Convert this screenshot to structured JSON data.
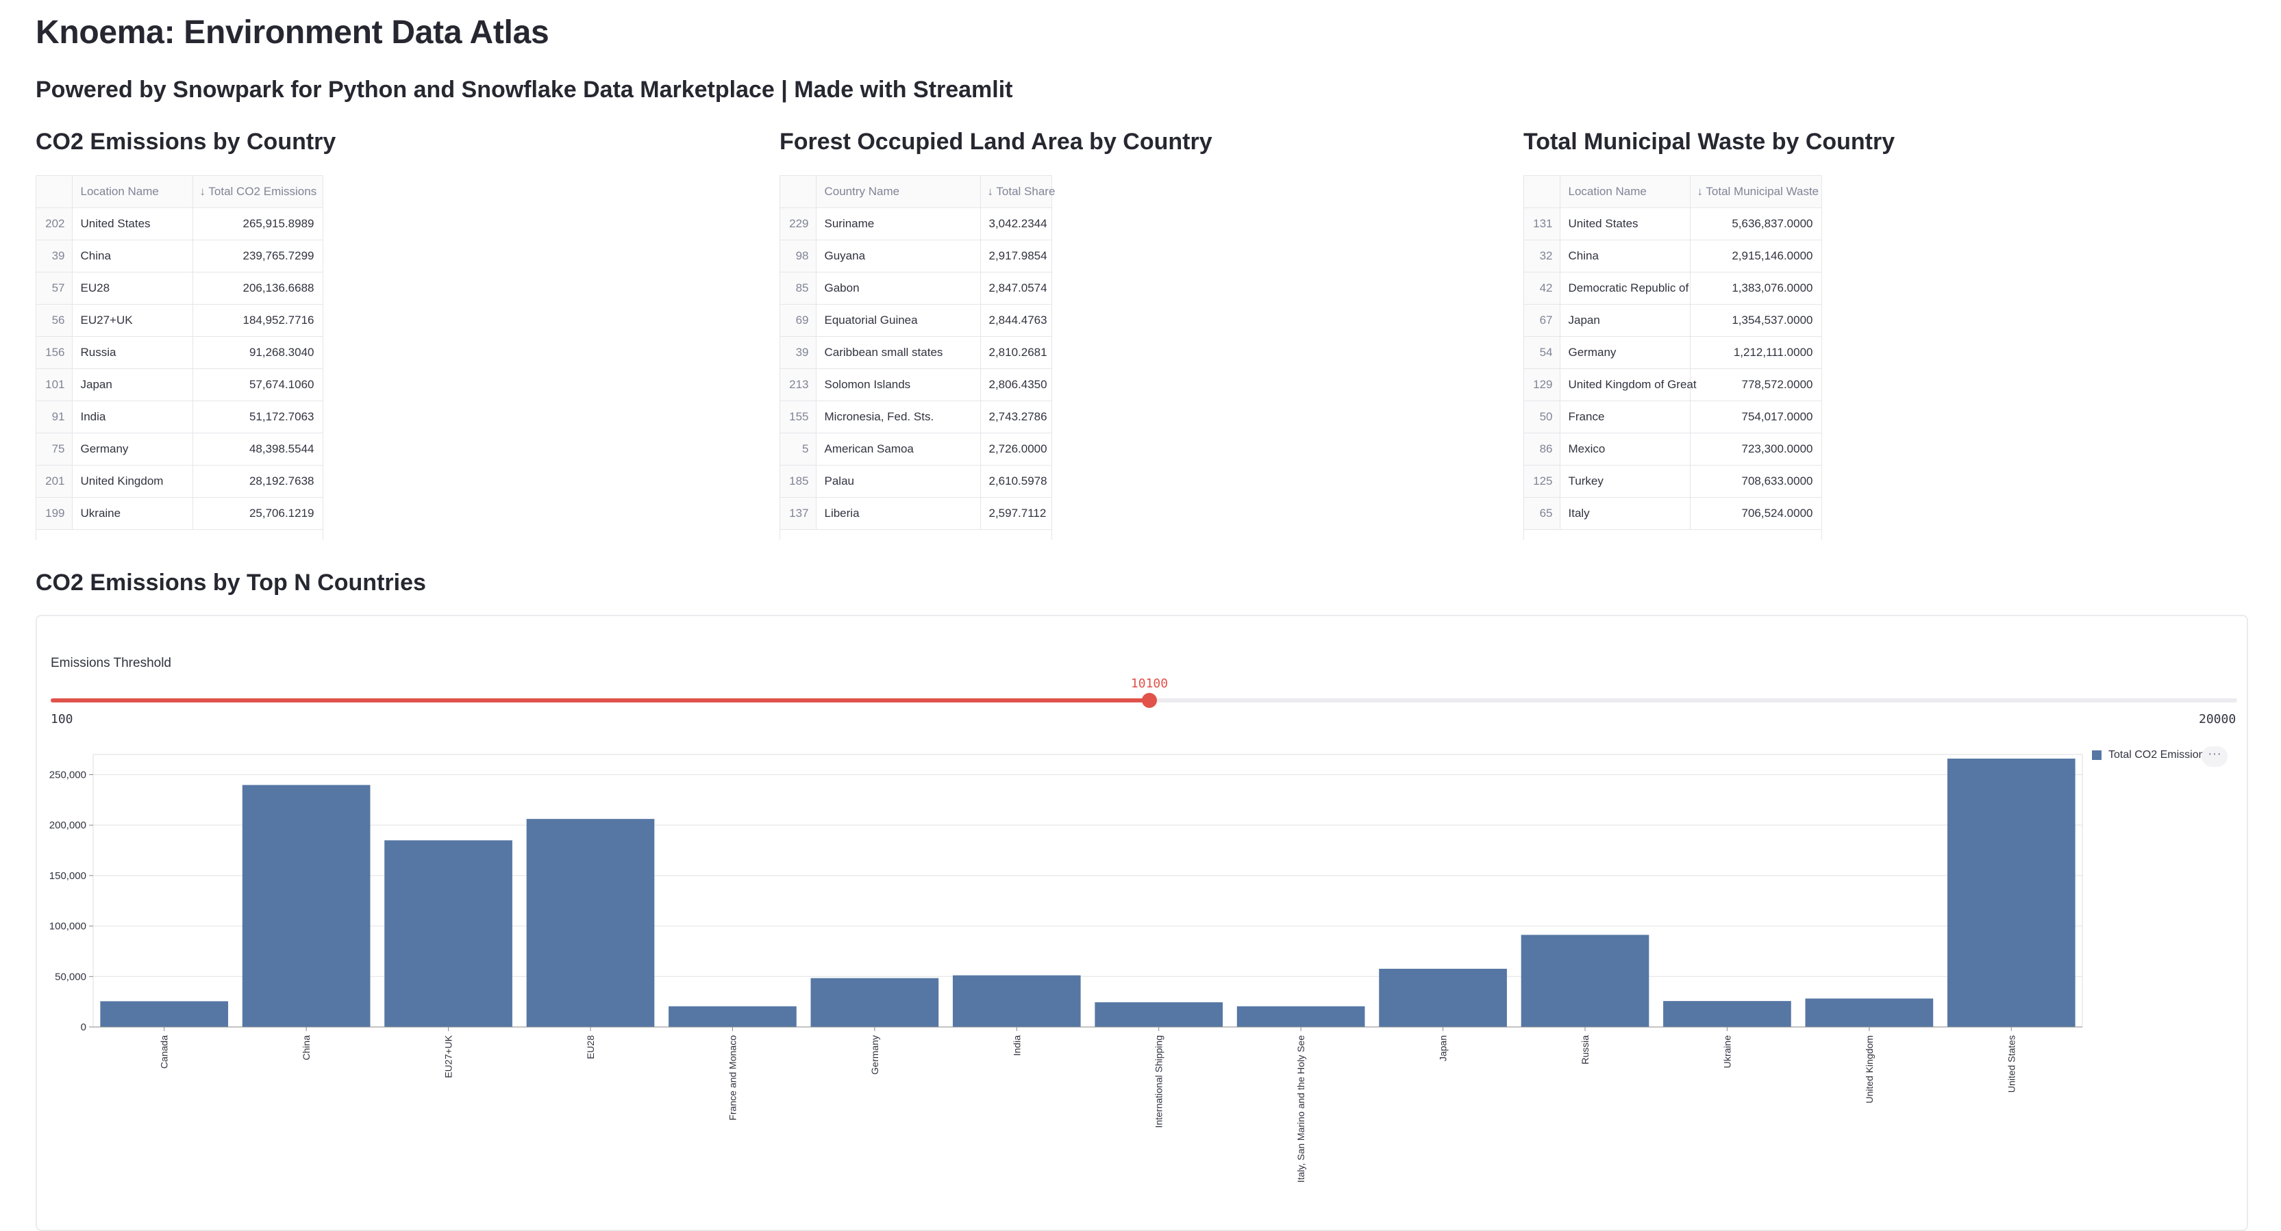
{
  "app": {
    "title": "Knoema: Environment Data Atlas",
    "subtitle": "Powered by Snowpark for Python and Snowflake Data Marketplace | Made with Streamlit"
  },
  "co2_table": {
    "heading": "CO2 Emissions by Country",
    "columns": [
      "Location Name",
      "↓ Total CO2 Emissions"
    ],
    "rows": [
      {
        "idx": "202",
        "name": "United States",
        "value": "265,915.8989"
      },
      {
        "idx": "39",
        "name": "China",
        "value": "239,765.7299"
      },
      {
        "idx": "57",
        "name": "EU28",
        "value": "206,136.6688"
      },
      {
        "idx": "56",
        "name": "EU27+UK",
        "value": "184,952.7716"
      },
      {
        "idx": "156",
        "name": "Russia",
        "value": "91,268.3040"
      },
      {
        "idx": "101",
        "name": "Japan",
        "value": "57,674.1060"
      },
      {
        "idx": "91",
        "name": "India",
        "value": "51,172.7063"
      },
      {
        "idx": "75",
        "name": "Germany",
        "value": "48,398.5544"
      },
      {
        "idx": "201",
        "name": "United Kingdom",
        "value": "28,192.7638"
      },
      {
        "idx": "199",
        "name": "Ukraine",
        "value": "25,706.1219"
      }
    ]
  },
  "forest_table": {
    "heading": "Forest Occupied Land Area by Country",
    "columns": [
      "Country Name",
      "↓ Total Share"
    ],
    "rows": [
      {
        "idx": "229",
        "name": "Suriname",
        "value": "3,042.2344"
      },
      {
        "idx": "98",
        "name": "Guyana",
        "value": "2,917.9854"
      },
      {
        "idx": "85",
        "name": "Gabon",
        "value": "2,847.0574"
      },
      {
        "idx": "69",
        "name": "Equatorial Guinea",
        "value": "2,844.4763"
      },
      {
        "idx": "39",
        "name": "Caribbean small states",
        "value": "2,810.2681"
      },
      {
        "idx": "213",
        "name": "Solomon Islands",
        "value": "2,806.4350"
      },
      {
        "idx": "155",
        "name": "Micronesia, Fed. Sts.",
        "value": "2,743.2786"
      },
      {
        "idx": "5",
        "name": "American Samoa",
        "value": "2,726.0000"
      },
      {
        "idx": "185",
        "name": "Palau",
        "value": "2,610.5978"
      },
      {
        "idx": "137",
        "name": "Liberia",
        "value": "2,597.7112"
      }
    ]
  },
  "waste_table": {
    "heading": "Total Municipal Waste by Country",
    "columns": [
      "Location Name",
      "↓ Total Municipal Waste"
    ],
    "rows": [
      {
        "idx": "131",
        "name": "United States",
        "value": "5,636,837.0000"
      },
      {
        "idx": "32",
        "name": "China",
        "value": "2,915,146.0000"
      },
      {
        "idx": "42",
        "name": "Democratic Republic of",
        "value": "1,383,076.0000"
      },
      {
        "idx": "67",
        "name": "Japan",
        "value": "1,354,537.0000"
      },
      {
        "idx": "54",
        "name": "Germany",
        "value": "1,212,111.0000"
      },
      {
        "idx": "129",
        "name": "United Kingdom of Great",
        "value": "778,572.0000"
      },
      {
        "idx": "50",
        "name": "France",
        "value": "754,017.0000"
      },
      {
        "idx": "86",
        "name": "Mexico",
        "value": "723,300.0000"
      },
      {
        "idx": "125",
        "name": "Turkey",
        "value": "708,633.0000"
      },
      {
        "idx": "65",
        "name": "Italy",
        "value": "706,524.0000"
      }
    ]
  },
  "topn": {
    "heading": "CO2 Emissions by Top N Countries",
    "slider": {
      "label": "Emissions Threshold",
      "min": 100,
      "max": 20000,
      "value": 10100,
      "min_label": "100",
      "max_label": "20000",
      "value_label": "10100"
    },
    "more_icon": "more-horizontal-icon"
  },
  "chart_data": {
    "type": "bar",
    "categories": [
      "Canada",
      "China",
      "EU27+UK",
      "EU28",
      "France and Monaco",
      "Germany",
      "India",
      "International Shipping",
      "Italy, San Marino and the Holy See",
      "Japan",
      "Russia",
      "Ukraine",
      "United Kingdom",
      "United States"
    ],
    "series": [
      {
        "name": "Total CO2 Emissions",
        "values": [
          25500,
          239766,
          184953,
          206137,
          20500,
          48399,
          51173,
          24500,
          20500,
          57674,
          91268,
          25706,
          28193,
          265916
        ]
      }
    ],
    "ylim": [
      0,
      270000
    ],
    "yticks": [
      0,
      50000,
      100000,
      150000,
      200000,
      250000
    ],
    "ytick_labels": [
      "0",
      "50,000",
      "100,000",
      "150,000",
      "200,000",
      "250,000"
    ],
    "legend": {
      "position": "top-right",
      "label": "Total CO2 Emissions"
    },
    "grid": true,
    "colors": {
      "bar": "#5677a4"
    }
  }
}
